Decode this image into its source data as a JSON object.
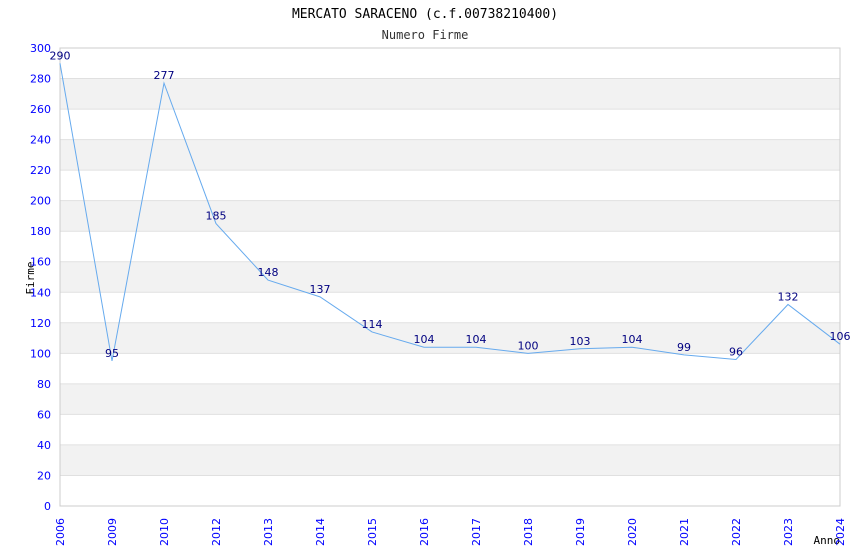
{
  "chart_data": {
    "type": "line",
    "title": "MERCATO SARACENO (c.f.00738210400)",
    "subtitle": "Numero Firme",
    "xlabel": "Anno",
    "ylabel": "Firme",
    "categories": [
      "2006",
      "2009",
      "2010",
      "2012",
      "2013",
      "2014",
      "2015",
      "2016",
      "2017",
      "2018",
      "2019",
      "2020",
      "2021",
      "2022",
      "2023",
      "2024"
    ],
    "series": [
      {
        "name": "Numero Firme",
        "values": [
          290,
          95,
          277,
          185,
          148,
          137,
          114,
          104,
          104,
          100,
          103,
          104,
          99,
          96,
          132,
          106
        ]
      }
    ],
    "ylim": [
      0,
      300
    ],
    "yticks": [
      0,
      20,
      40,
      60,
      80,
      100,
      120,
      140,
      160,
      180,
      200,
      220,
      240,
      260,
      280,
      300
    ],
    "grid": true,
    "line_color": "#66aaee",
    "band_color": "#f2f2f2"
  }
}
